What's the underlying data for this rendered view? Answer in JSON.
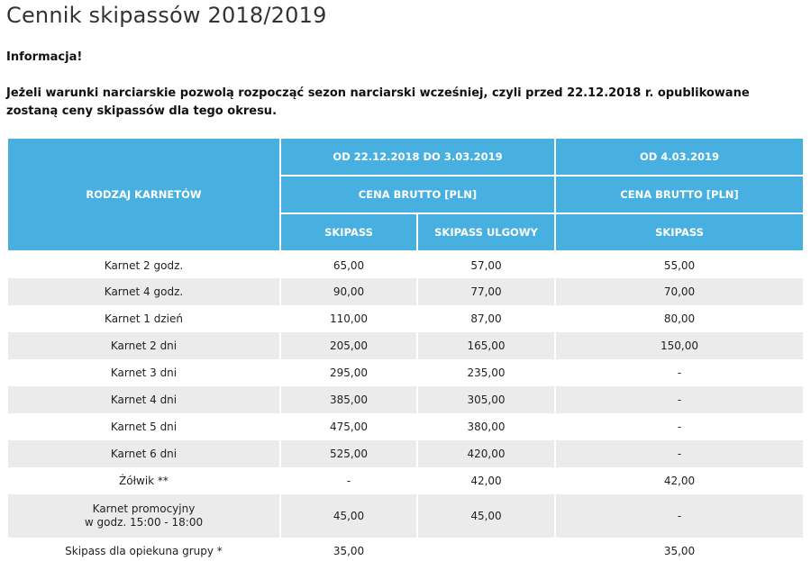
{
  "page_title": "Cennik skipassów 2018/2019",
  "info": {
    "title": "Informacja!",
    "text": "Jeżeli warunki narciarskie pozwolą rozpocząć sezon narciarski wcześniej, czyli przed 22.12.2018 r. opublikowane zostaną ceny skipassów dla tego okresu."
  },
  "table": {
    "header": {
      "type_label": "RODZAJ KARNETÓW",
      "period1": "OD 22.12.2018 DO 3.03.2019",
      "period2": "OD 4.03.2019",
      "price1": "CENA BRUTTO [PLN]",
      "price2": "CENA BRUTTO [PLN]",
      "skipass1": "SKIPASS",
      "skipass_ulgowy": "SKIPASS ULGOWY",
      "skipass2": "SKIPASS"
    },
    "rows": [
      {
        "name": "Karnet 2 godz.",
        "skipass": "65,00",
        "ulgowy": "57,00",
        "late": "55,00"
      },
      {
        "name": "Karnet 4 godz.",
        "skipass": "90,00",
        "ulgowy": "77,00",
        "late": "70,00"
      },
      {
        "name": "Karnet 1 dzień",
        "skipass": "110,00",
        "ulgowy": "87,00",
        "late": "80,00"
      },
      {
        "name": "Karnet 2 dni",
        "skipass": "205,00",
        "ulgowy": "165,00",
        "late": "150,00"
      },
      {
        "name": "Karnet 3 dni",
        "skipass": "295,00",
        "ulgowy": "235,00",
        "late": "-"
      },
      {
        "name": "Karnet 4 dni",
        "skipass": "385,00",
        "ulgowy": "305,00",
        "late": "-"
      },
      {
        "name": "Karnet 5 dni",
        "skipass": "475,00",
        "ulgowy": "380,00",
        "late": "-"
      },
      {
        "name": "Karnet 6 dni",
        "skipass": "525,00",
        "ulgowy": "420,00",
        "late": "-"
      },
      {
        "name": "Żółwik **",
        "skipass": "-",
        "ulgowy": "42,00",
        "late": "42,00"
      },
      {
        "name": "Karnet promocyjny\nw godz. 15:00 - 18:00",
        "skipass": "45,00",
        "ulgowy": "45,00",
        "late": "-"
      },
      {
        "name": "Skipass dla opiekuna grupy *",
        "skipass": "35,00",
        "ulgowy": "",
        "late": "35,00"
      }
    ]
  }
}
